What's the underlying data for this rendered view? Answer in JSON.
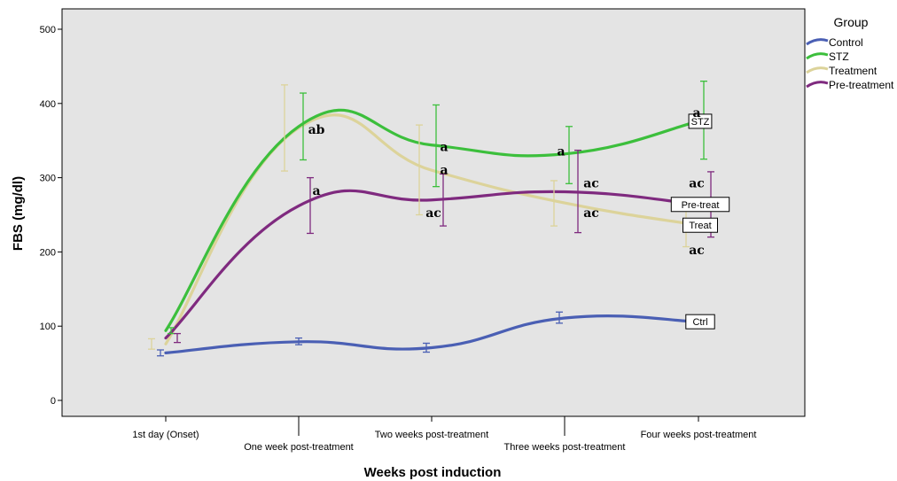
{
  "chart_data": {
    "type": "line",
    "categories": [
      "1st day (Onset)",
      "One week post-treatment",
      "Two weeks post-treatment",
      "Three weeks post-treatment",
      "Four weeks post-treatment"
    ],
    "xlabel": "Weeks post induction",
    "ylabel": "FBS (mg/dl)",
    "ylim": [
      -10,
      520
    ],
    "yticks": [
      0,
      100,
      200,
      300,
      400,
      500
    ],
    "legend": {
      "title": "Group",
      "position": "right"
    },
    "grid": false,
    "series": [
      {
        "name": "Control",
        "color": "#4a5fb4",
        "values": [
          64,
          79,
          71,
          111,
          106
        ],
        "err_low": [
          60,
          75,
          65,
          104,
          106
        ],
        "err_high": [
          68,
          84,
          77,
          119,
          106
        ],
        "end_label": "Ctrl"
      },
      {
        "name": "STZ",
        "color": "#3cbf3c",
        "values": [
          94,
          369,
          344,
          332,
          376
        ],
        "err_low": [
          90,
          324,
          288,
          292,
          325
        ],
        "err_high": [
          98,
          414,
          398,
          369,
          430
        ],
        "end_label": "STZ"
      },
      {
        "name": "Treatment",
        "color": "#dcd39a",
        "values": [
          76,
          367,
          310,
          266,
          236
        ],
        "err_low": [
          69,
          309,
          250,
          235,
          207
        ],
        "err_high": [
          83,
          425,
          371,
          296,
          262
        ],
        "end_label": "Treat"
      },
      {
        "name": "Pre-treatment",
        "color": "#7f2a7f",
        "values": [
          84,
          262,
          270,
          281,
          264
        ],
        "err_low": [
          78,
          225,
          235,
          226,
          220
        ],
        "err_high": [
          90,
          300,
          305,
          337,
          308
        ],
        "end_label": "Pre-treat"
      }
    ],
    "significance_labels": [
      {
        "category": 1,
        "value": 365,
        "text": "ab"
      },
      {
        "category": 1,
        "value": 283,
        "text": "a"
      },
      {
        "category": 2,
        "value": 342,
        "text": "a"
      },
      {
        "category": 2,
        "value": 311,
        "text": "a"
      },
      {
        "category": 2,
        "value": 253,
        "text": "ac"
      },
      {
        "category": 3,
        "value": 336,
        "text": "a"
      },
      {
        "category": 3,
        "value": 293,
        "text": "ac"
      },
      {
        "category": 3,
        "value": 253,
        "text": "ac"
      },
      {
        "category": 4,
        "value": 388,
        "text": "a"
      },
      {
        "category": 4,
        "value": 293,
        "text": "ac"
      },
      {
        "category": 4,
        "value": 203,
        "text": "ac"
      }
    ]
  }
}
